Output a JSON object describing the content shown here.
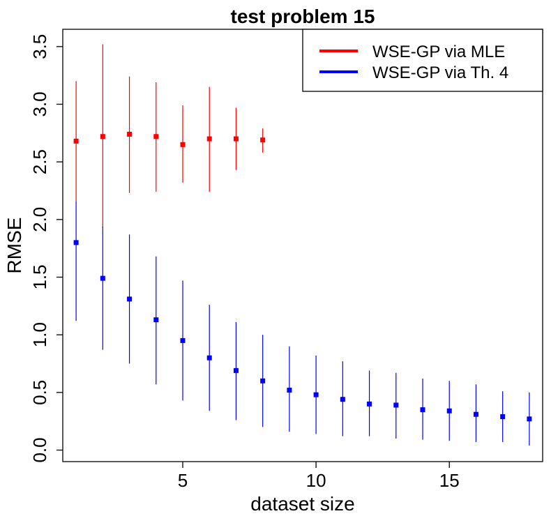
{
  "chart_data": {
    "type": "scatter",
    "title": "test problem 15",
    "xlabel": "dataset size",
    "ylabel": "RMSE",
    "xlim": [
      0.5,
      18.5
    ],
    "ylim": [
      -0.1,
      3.65
    ],
    "xticks": [
      5,
      10,
      15
    ],
    "xtick_labels": [
      "5",
      "10",
      "15"
    ],
    "yticks": [
      0.0,
      0.5,
      1.0,
      1.5,
      2.0,
      2.5,
      3.0,
      3.5
    ],
    "ytick_labels": [
      "0.0",
      "0.5",
      "1.0",
      "1.5",
      "2.0",
      "2.5",
      "3.0",
      "3.5"
    ],
    "legend_position": "top-right",
    "series": [
      {
        "name": "WSE-GP via MLE",
        "color": "#ff0000",
        "x": [
          1,
          2,
          3,
          4,
          5,
          6,
          7,
          8
        ],
        "y": [
          2.68,
          2.72,
          2.74,
          2.72,
          2.65,
          2.7,
          2.7,
          2.69
        ],
        "lower": [
          2.16,
          1.93,
          2.23,
          2.24,
          2.32,
          2.24,
          2.43,
          2.58
        ],
        "upper": [
          3.2,
          3.52,
          3.24,
          3.19,
          2.99,
          3.15,
          2.97,
          2.79
        ]
      },
      {
        "name": "WSE-GP via Th. 4",
        "color": "#0000ff",
        "x": [
          1,
          2,
          3,
          4,
          5,
          6,
          7,
          8,
          9,
          10,
          11,
          12,
          13,
          14,
          15,
          16,
          17,
          18
        ],
        "y": [
          1.8,
          1.49,
          1.31,
          1.13,
          0.95,
          0.8,
          0.69,
          0.6,
          0.52,
          0.48,
          0.44,
          0.4,
          0.39,
          0.35,
          0.34,
          0.31,
          0.29,
          0.27
        ],
        "lower": [
          1.12,
          0.87,
          0.75,
          0.57,
          0.43,
          0.34,
          0.26,
          0.2,
          0.16,
          0.14,
          0.12,
          0.12,
          0.1,
          0.09,
          0.08,
          0.07,
          0.07,
          0.04
        ],
        "upper": [
          2.16,
          1.94,
          1.87,
          1.68,
          1.47,
          1.26,
          1.11,
          1.0,
          0.9,
          0.82,
          0.77,
          0.69,
          0.67,
          0.62,
          0.6,
          0.57,
          0.51,
          0.5
        ]
      }
    ]
  }
}
